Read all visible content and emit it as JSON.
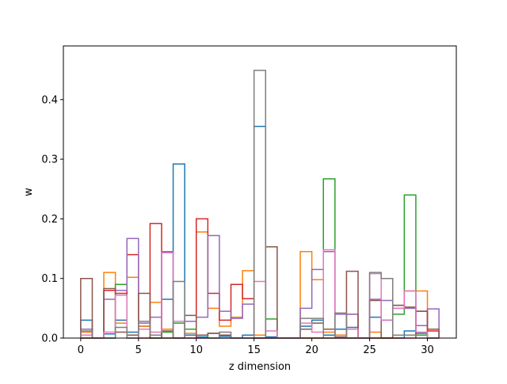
{
  "chart_data": {
    "type": "step-histogram",
    "title": "",
    "xlabel": "z dimension",
    "ylabel": "w",
    "xlim": [
      -1.5,
      32.5
    ],
    "ylim": [
      0,
      0.49
    ],
    "x_ticks": [
      0,
      5,
      10,
      15,
      20,
      25,
      30
    ],
    "y_ticks": [
      0.0,
      0.1,
      0.2,
      0.3,
      0.4
    ],
    "y_tick_labels": [
      "0.0",
      "0.1",
      "0.2",
      "0.3",
      "0.4"
    ],
    "bin_edges": [
      0,
      1,
      2,
      3,
      4,
      5,
      6,
      7,
      8,
      9,
      10,
      11,
      12,
      13,
      14,
      15,
      16,
      17,
      18,
      19,
      20,
      21,
      22,
      23,
      24,
      25,
      26,
      27,
      28,
      29,
      30,
      31
    ],
    "grid": false,
    "legend": null,
    "series": [
      {
        "color": "#1f77b4",
        "values": [
          0.03,
          0.0,
          0.007,
          0.03,
          0.01,
          0.02,
          0.0,
          0.065,
          0.292,
          0.005,
          0.002,
          0.008,
          0.003,
          0.0,
          0.005,
          0.355,
          0.002,
          0.0,
          0.0,
          0.02,
          0.03,
          0.005,
          0.015,
          0.018,
          0.0,
          0.035,
          0.03,
          0.0,
          0.012,
          0.008,
          0.0
        ]
      },
      {
        "color": "#ff7f0e",
        "values": [
          0.01,
          0.0,
          0.11,
          0.025,
          0.102,
          0.02,
          0.06,
          0.015,
          0.0,
          0.008,
          0.178,
          0.05,
          0.02,
          0.035,
          0.113,
          0.005,
          0.0,
          0.0,
          0.0,
          0.145,
          0.098,
          0.01,
          0.005,
          0.04,
          0.0,
          0.01,
          0.0,
          0.05,
          0.079,
          0.079,
          0.0
        ]
      },
      {
        "color": "#2ca02c",
        "values": [
          0.0,
          0.0,
          0.0,
          0.09,
          0.005,
          0.015,
          0.0,
          0.01,
          0.025,
          0.015,
          0.005,
          0.0,
          0.0,
          0.0,
          0.0,
          0.0,
          0.032,
          0.0,
          0.0,
          0.0,
          0.0,
          0.267,
          0.0,
          0.0,
          0.0,
          0.0,
          0.0,
          0.04,
          0.24,
          0.005,
          0.0
        ]
      },
      {
        "color": "#d62728",
        "values": [
          0.0,
          0.0,
          0.08,
          0.075,
          0.14,
          0.0,
          0.192,
          0.0,
          0.0,
          0.0,
          0.2,
          0.075,
          0.03,
          0.09,
          0.066,
          0.0,
          0.0,
          0.0,
          0.0,
          0.0,
          0.0,
          0.0,
          0.0,
          0.0,
          0.0,
          0.0,
          0.0,
          0.0,
          0.0,
          0.045,
          0.012
        ]
      },
      {
        "color": "#9467bd",
        "values": [
          0.015,
          0.0,
          0.065,
          0.08,
          0.167,
          0.025,
          0.035,
          0.145,
          0.0,
          0.028,
          0.035,
          0.172,
          0.045,
          0.033,
          0.057,
          0.0,
          0.0,
          0.0,
          0.0,
          0.05,
          0.115,
          0.145,
          0.04,
          0.04,
          0.0,
          0.065,
          0.063,
          0.055,
          0.05,
          0.021,
          0.049
        ]
      },
      {
        "color": "#8c564b",
        "values": [
          0.1,
          0.0,
          0.083,
          0.01,
          0.005,
          0.075,
          0.0,
          0.012,
          0.0,
          0.038,
          0.005,
          0.008,
          0.005,
          0.0,
          0.0,
          0.0,
          0.153,
          0.0,
          0.0,
          0.015,
          0.025,
          0.015,
          0.002,
          0.112,
          0.0,
          0.063,
          0.0,
          0.055,
          0.052,
          0.045,
          0.015
        ]
      },
      {
        "color": "#e377c2",
        "values": [
          0.005,
          0.0,
          0.01,
          0.072,
          0.0,
          0.015,
          0.01,
          0.143,
          0.028,
          0.0,
          0.0,
          0.0,
          0.0,
          0.0,
          0.0,
          0.095,
          0.012,
          0.0,
          0.0,
          0.025,
          0.01,
          0.148,
          0.0,
          0.015,
          0.0,
          0.108,
          0.03,
          0.05,
          0.079,
          0.01,
          0.0
        ]
      },
      {
        "color": "#7f7f7f",
        "values": [
          0.012,
          0.0,
          0.0,
          0.018,
          0.0,
          0.028,
          0.005,
          0.0,
          0.095,
          0.0,
          0.0,
          0.0,
          0.01,
          0.0,
          0.0,
          0.449,
          0.0,
          0.0,
          0.0,
          0.033,
          0.033,
          0.0,
          0.042,
          0.0,
          0.0,
          0.11,
          0.1,
          0.005,
          0.005,
          0.0,
          0.0
        ]
      }
    ]
  }
}
